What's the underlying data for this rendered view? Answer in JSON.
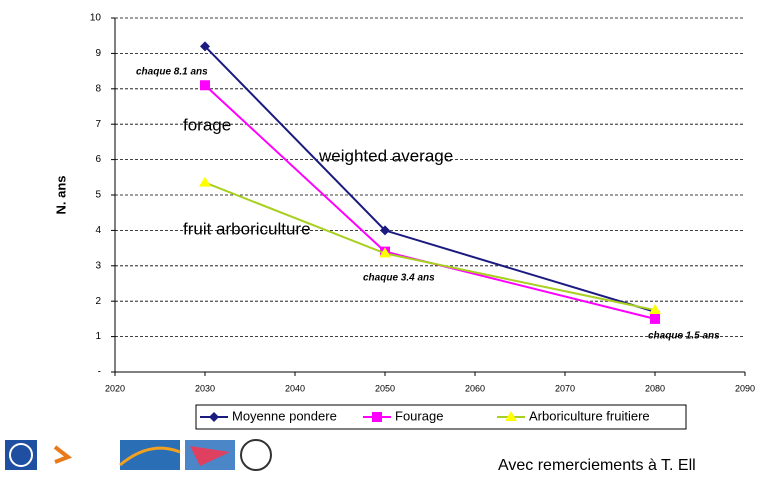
{
  "chart_data": {
    "type": "line",
    "y_label": "N. ans",
    "x": [
      2030,
      2050,
      2080
    ],
    "series": [
      {
        "name": "Moyenne pondere",
        "color": "#1a1a80",
        "marker": "diamond",
        "values": [
          9.2,
          4.0,
          1.7
        ]
      },
      {
        "name": "Fourage",
        "color": "#ff00ff",
        "marker": "square",
        "values": [
          8.1,
          3.4,
          1.5
        ]
      },
      {
        "name": "Arboriculture fruitiere",
        "color": "#a8d020",
        "marker": "triangle",
        "values": [
          5.35,
          3.35,
          1.75
        ]
      }
    ],
    "xlim": [
      2020,
      2090
    ],
    "xticks": [
      2020,
      2030,
      2040,
      2050,
      2060,
      2070,
      2080,
      2090
    ],
    "ylim": [
      0,
      10
    ],
    "yticks": [
      {
        "value": 0,
        "label": "-"
      },
      1,
      2,
      3,
      4,
      5,
      6,
      7,
      8,
      9,
      10
    ],
    "grid": true,
    "annotations": [
      "chaque 8.1 ans",
      "chaque 3.4 ans",
      "chaque 1.5 ans",
      "forage",
      "weighted average",
      "fruit arboriculture"
    ]
  },
  "footer": "Avec remerciements à T. Ell"
}
